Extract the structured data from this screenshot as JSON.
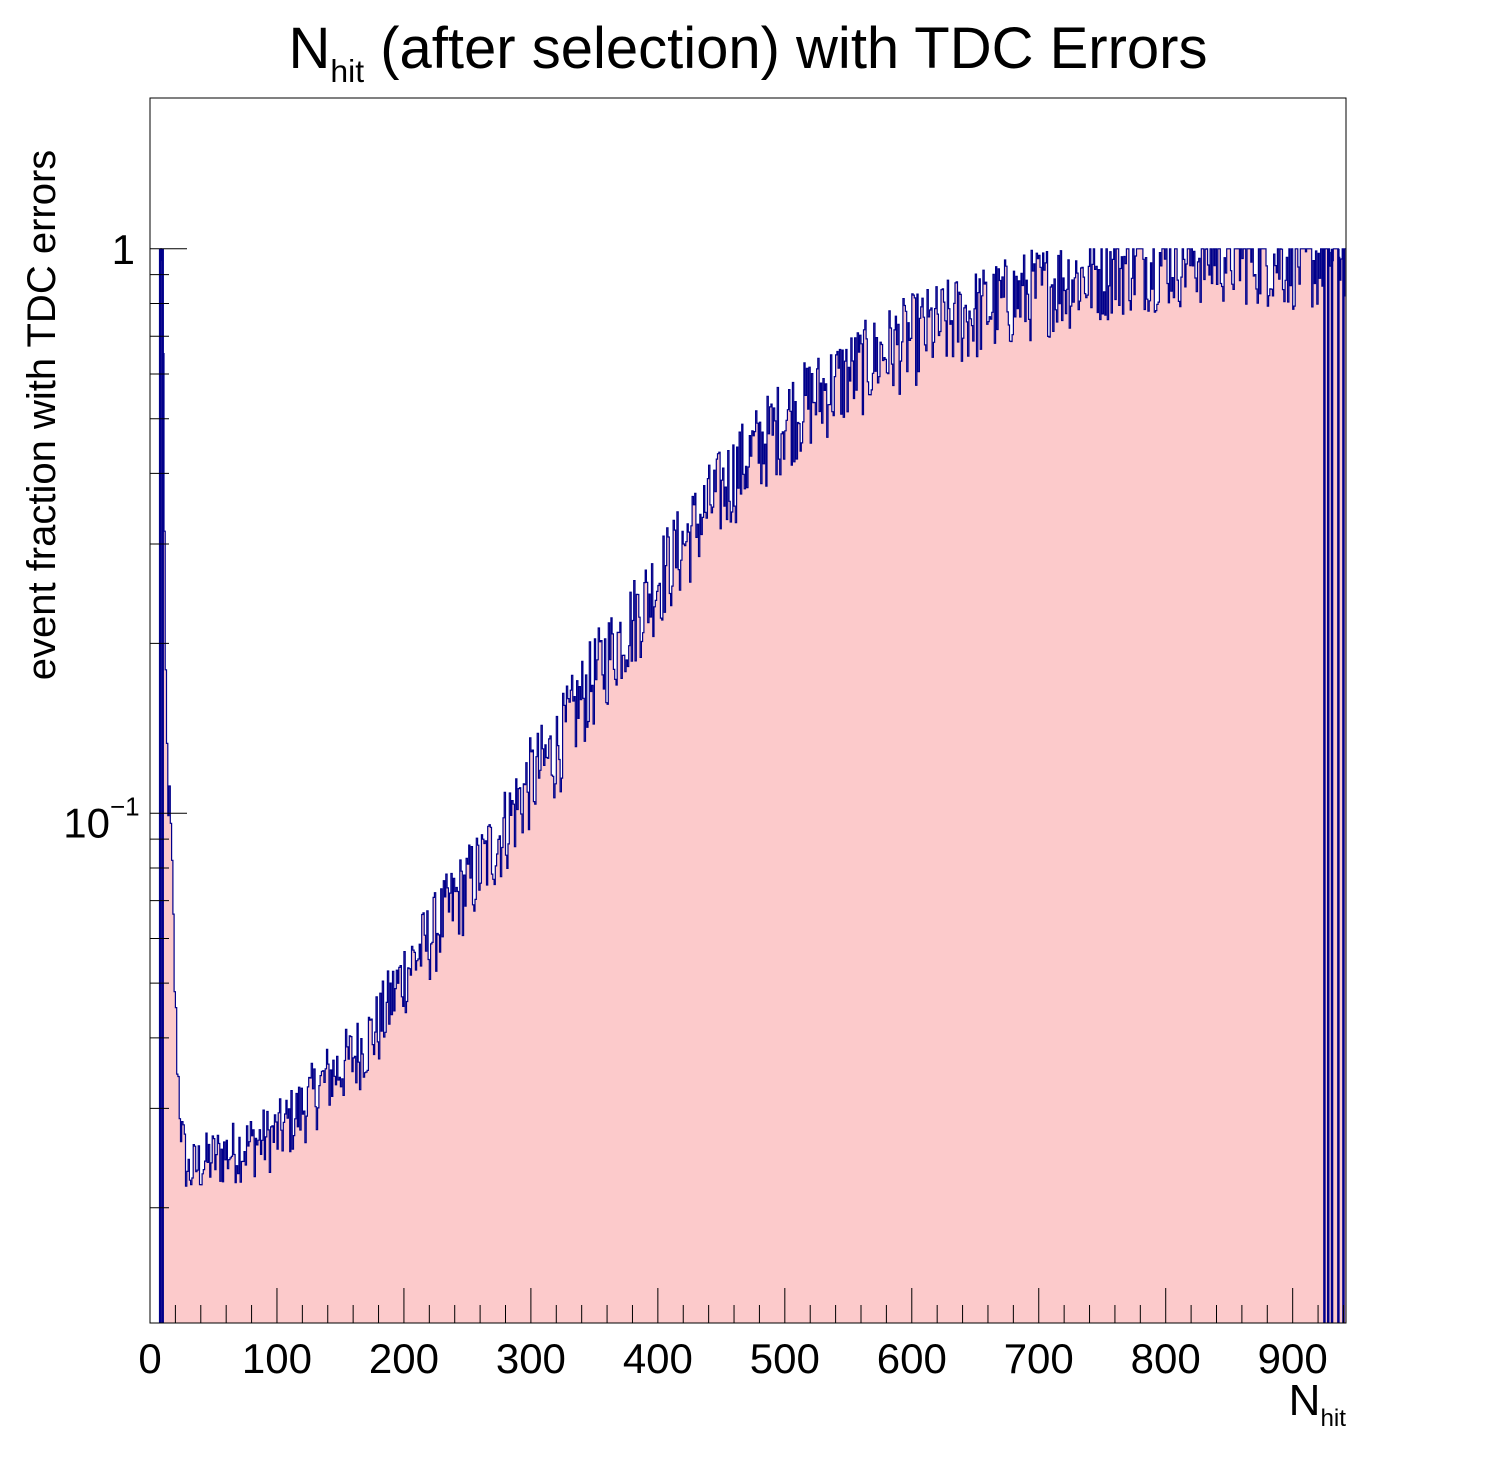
{
  "chart_data": {
    "type": "histogram",
    "title_main": "N",
    "title_sub": "hit",
    "title_rest": " (after selection) with TDC Errors",
    "xlabel_main": "N",
    "xlabel_sub": "hit",
    "ylabel": "event fraction with TDC errors",
    "xlim": [
      0,
      942
    ],
    "ylim": [
      0.0125,
      1.85
    ],
    "y_scale": "log",
    "x_ticks": [
      0,
      100,
      200,
      300,
      400,
      500,
      600,
      700,
      800,
      900
    ],
    "x_tick_labels": [
      "0",
      "100",
      "200",
      "300",
      "400",
      "500",
      "600",
      "700",
      "800",
      "900"
    ],
    "y_tick_label_one": "1",
    "y_tick_label_tenth_base": "10",
    "y_tick_label_tenth_exp": "−1",
    "bin_width": 1,
    "fill_color": "#fccacb",
    "line_color": "#00008b",
    "anchors": [
      [
        0,
        0
      ],
      [
        8,
        1.0
      ],
      [
        10,
        1.0
      ],
      [
        11,
        0.4
      ],
      [
        12,
        0.2
      ],
      [
        14,
        0.11
      ],
      [
        16,
        0.1
      ],
      [
        18,
        0.07
      ],
      [
        20,
        0.045
      ],
      [
        22,
        0.035
      ],
      [
        25,
        0.027
      ],
      [
        30,
        0.023
      ],
      [
        40,
        0.024
      ],
      [
        60,
        0.025
      ],
      [
        80,
        0.026
      ],
      [
        100,
        0.027
      ],
      [
        120,
        0.03
      ],
      [
        140,
        0.034
      ],
      [
        160,
        0.037
      ],
      [
        180,
        0.042
      ],
      [
        200,
        0.052
      ],
      [
        220,
        0.06
      ],
      [
        240,
        0.07
      ],
      [
        260,
        0.08
      ],
      [
        280,
        0.095
      ],
      [
        300,
        0.115
      ],
      [
        320,
        0.13
      ],
      [
        340,
        0.16
      ],
      [
        360,
        0.19
      ],
      [
        380,
        0.22
      ],
      [
        400,
        0.26
      ],
      [
        420,
        0.3
      ],
      [
        440,
        0.35
      ],
      [
        460,
        0.4
      ],
      [
        480,
        0.45
      ],
      [
        500,
        0.5
      ],
      [
        520,
        0.54
      ],
      [
        540,
        0.58
      ],
      [
        560,
        0.62
      ],
      [
        580,
        0.66
      ],
      [
        600,
        0.7
      ],
      [
        620,
        0.73
      ],
      [
        640,
        0.76
      ],
      [
        660,
        0.79
      ],
      [
        680,
        0.82
      ],
      [
        700,
        0.85
      ],
      [
        720,
        0.88
      ],
      [
        740,
        0.9
      ],
      [
        760,
        0.93
      ],
      [
        780,
        0.95
      ],
      [
        800,
        0.96
      ],
      [
        820,
        0.97
      ],
      [
        840,
        0.98
      ],
      [
        860,
        0.98
      ],
      [
        880,
        0.97
      ],
      [
        900,
        0.96
      ],
      [
        920,
        0.95
      ],
      [
        924,
        1.0
      ],
      [
        942,
        1.0
      ]
    ],
    "noise_relative": 0.12,
    "spikes": [
      {
        "x": 8,
        "y": 1.0
      },
      {
        "x": 10,
        "y": 1.0
      },
      {
        "x": 925,
        "y": 1.0
      },
      {
        "x": 928,
        "y": 1.0
      },
      {
        "x": 931,
        "y": 1.0
      },
      {
        "x": 936,
        "y": 1.0
      },
      {
        "x": 940,
        "y": 1.0
      }
    ],
    "grid": false,
    "legend": "none"
  }
}
